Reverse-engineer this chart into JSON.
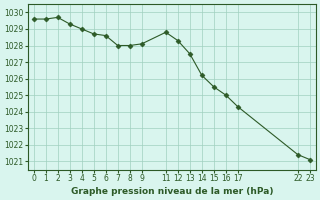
{
  "x": [
    0,
    1,
    2,
    3,
    4,
    5,
    6,
    7,
    8,
    9,
    11,
    12,
    13,
    14,
    15,
    16,
    17,
    22,
    23
  ],
  "y": [
    1029.6,
    1029.6,
    1029.7,
    1029.3,
    1029.0,
    1028.7,
    1028.6,
    1028.0,
    1028.0,
    1028.1,
    1028.8,
    1028.3,
    1027.5,
    1026.2,
    1025.5,
    1025.0,
    1024.3,
    1021.4,
    1021.1
  ],
  "line_color": "#2d5a27",
  "marker_color": "#2d5a27",
  "bg_color": "#d9f5ee",
  "grid_color": "#a0d0c0",
  "xlabel": "Graphe pression niveau de la mer (hPa)",
  "xlabel_color": "#2d5a27",
  "ylim": [
    1020.5,
    1030.5
  ],
  "yticks": [
    1021,
    1022,
    1023,
    1024,
    1025,
    1026,
    1027,
    1028,
    1029,
    1030
  ],
  "xticks": [
    0,
    1,
    2,
    3,
    4,
    5,
    6,
    7,
    8,
    9,
    11,
    12,
    13,
    14,
    15,
    16,
    17,
    22,
    23
  ],
  "xtick_labels": [
    "0",
    "1",
    "2",
    "3",
    "4",
    "5",
    "6",
    "7",
    "8",
    "9",
    "11",
    "12",
    "13",
    "14",
    "15",
    "16",
    "17",
    "22",
    "23"
  ],
  "border_color": "#2d5a27"
}
